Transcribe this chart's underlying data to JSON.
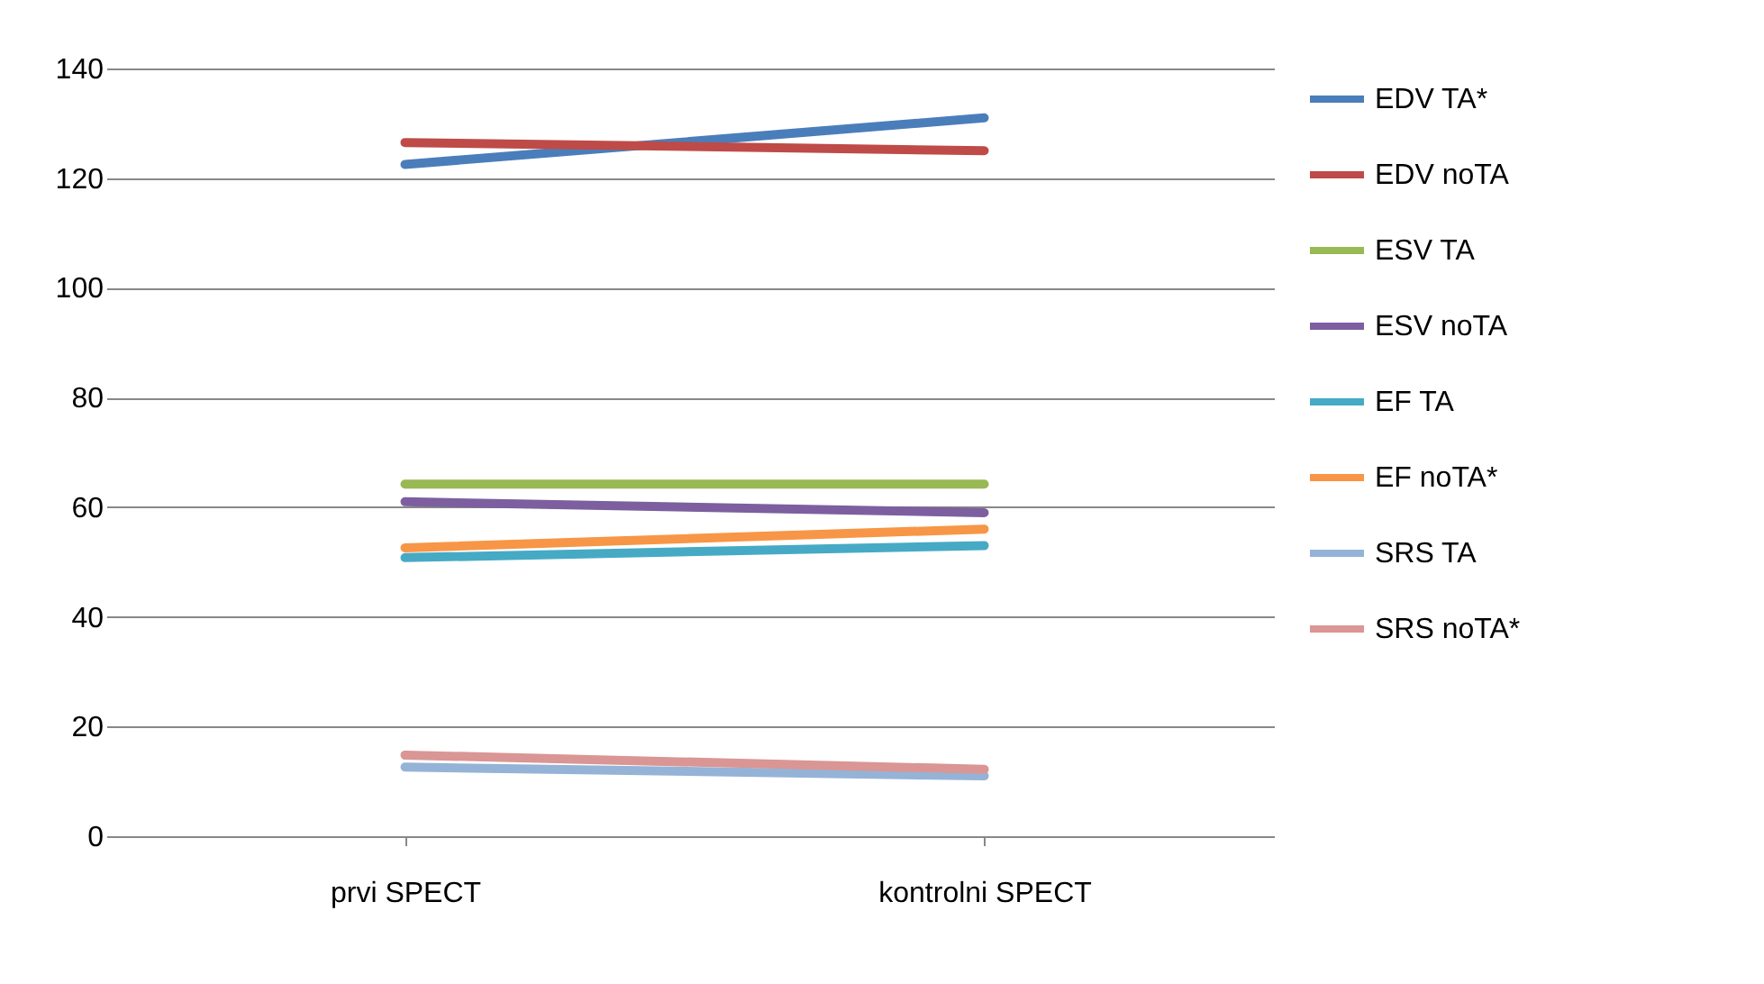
{
  "chart_data": {
    "type": "line",
    "categories": [
      "prvi SPECT",
      "kontrolni SPECT"
    ],
    "series": [
      {
        "name": "EDV TA*",
        "color": "#4a7ebb",
        "values": [
          122.5,
          131
        ]
      },
      {
        "name": "EDV noTA",
        "color": "#be4b48",
        "values": [
          126.5,
          125
        ]
      },
      {
        "name": "ESV TA",
        "color": "#98b954",
        "values": [
          64.2,
          64.2
        ]
      },
      {
        "name": "ESV noTA",
        "color": "#7d5fa0",
        "values": [
          61,
          59
        ]
      },
      {
        "name": "EF TA",
        "color": "#46aac5",
        "values": [
          50.8,
          53
        ]
      },
      {
        "name": "EF noTA*",
        "color": "#f79646",
        "values": [
          52.6,
          56
        ]
      },
      {
        "name": "SRS TA",
        "color": "#95b3d7",
        "values": [
          12.6,
          11
        ]
      },
      {
        "name": "SRS noTA*",
        "color": "#d99694",
        "values": [
          14.8,
          12.2
        ]
      }
    ],
    "ylim": [
      0,
      140
    ],
    "yticks": [
      0,
      20,
      40,
      60,
      80,
      100,
      120,
      140
    ],
    "grid": "y",
    "legend": "right",
    "marker": "none",
    "line_style": "solid"
  }
}
